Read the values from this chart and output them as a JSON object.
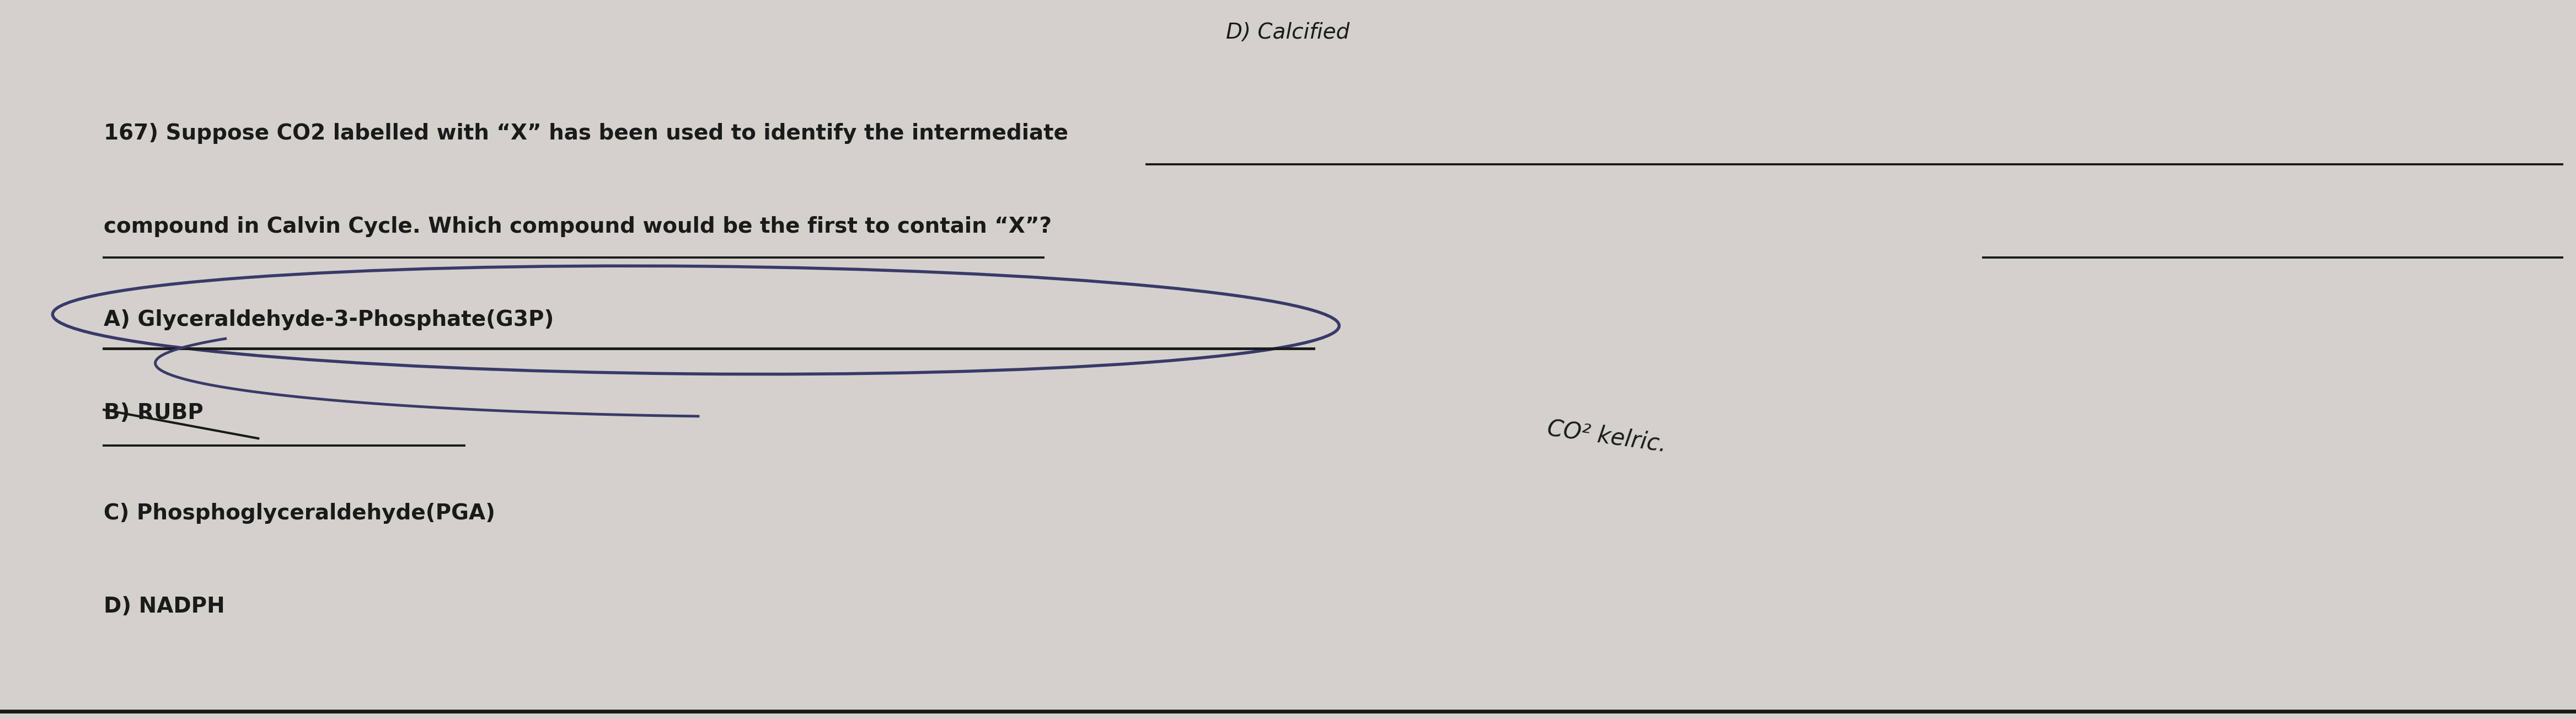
{
  "bg_color": "#d4d0cb",
  "text_color": "#1a1a1a",
  "fig_width": 46.71,
  "fig_height": 13.04,
  "header_text": "D) Calcified",
  "question_line1": "167) Suppose CO2 labelled with “X” has been used to identify the intermediate",
  "question_line2": "compound in Calvin Cycle. Which compound would be the first to contain “X”?",
  "option_A": "A) Glyceraldehyde-3-Phosphate(G3P)",
  "option_B": "B) RUBP",
  "option_C": "C) Phosphoglyceraldehyde(PGA)",
  "option_D": "D) NADPH",
  "handwritten_annotation": "CO² kelric.",
  "underline_color": "#1a1a1a",
  "circle_color": "#3a3a6a",
  "border_color": "#1a1a1a"
}
